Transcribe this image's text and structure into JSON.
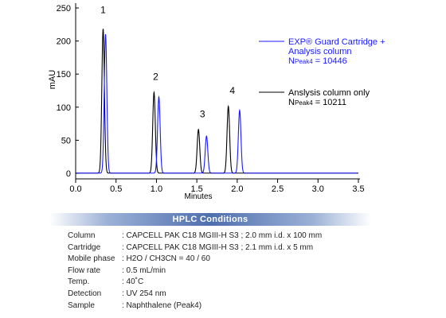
{
  "chart_data": {
    "type": "line",
    "xlabel": "Minutes",
    "ylabel": "mAU",
    "xlim": [
      0,
      3.5
    ],
    "ylim": [
      0,
      250
    ],
    "xticks": [
      "0.0",
      "0.5",
      "1.0",
      "1.5",
      "2.0",
      "2.5",
      "3.0",
      "3.5"
    ],
    "yticks": [
      "0",
      "50",
      "100",
      "150",
      "200",
      "250"
    ],
    "series": [
      {
        "color": "#000000",
        "peaks": [
          {
            "t": 0.34,
            "h": 218
          },
          {
            "t": 0.97,
            "h": 122
          },
          {
            "t": 1.52,
            "h": 66
          },
          {
            "t": 1.89,
            "h": 101
          }
        ]
      },
      {
        "color": "#1a1aff",
        "peaks": [
          {
            "t": 0.37,
            "h": 210
          },
          {
            "t": 1.03,
            "h": 115
          },
          {
            "t": 1.62,
            "h": 56
          },
          {
            "t": 2.03,
            "h": 95
          }
        ]
      }
    ],
    "peak_labels": [
      {
        "label": "1",
        "t": 0.34,
        "y": 242
      },
      {
        "label": "2",
        "t": 0.99,
        "y": 141
      },
      {
        "label": "3",
        "t": 1.57,
        "y": 85
      },
      {
        "label": "4",
        "t": 1.94,
        "y": 120
      }
    ],
    "legend": [
      {
        "color": "#1a1aff",
        "lines": [
          "EXP® Guard Cartridge +",
          "Analysis column"
        ],
        "n_main": "N",
        "n_sub": "Peak4",
        "n_rest": " = 10446"
      },
      {
        "color": "#000000",
        "lines": [
          "Anslysis column only"
        ],
        "n_main": "N",
        "n_sub": "Peak4",
        "n_rest": " = 10211"
      }
    ],
    "legend_position": "right"
  },
  "conditions": {
    "title": "HPLC Conditions",
    "rows": [
      {
        "label": "Column",
        "value": ": CAPCELL PAK C18 MGIII-H S3 ; 2.0 mm i.d. x 100 mm"
      },
      {
        "label": "Cartridge",
        "value": ": CAPCELL PAK C18 MGIII-H S3 ; 2.1 mm i.d. x 5 mm"
      },
      {
        "label": "Mobile phase",
        "value": ": H2O / CH3CN = 40 / 60"
      },
      {
        "label": "Flow rate",
        "value": ": 0.5 mL/min"
      },
      {
        "label": "Temp.",
        "value": ": 40˚C"
      },
      {
        "label": "Detection",
        "value": ": UV 254 nm"
      },
      {
        "label": "Sample",
        "value": ": Naphthalene (Peak4)"
      }
    ]
  }
}
